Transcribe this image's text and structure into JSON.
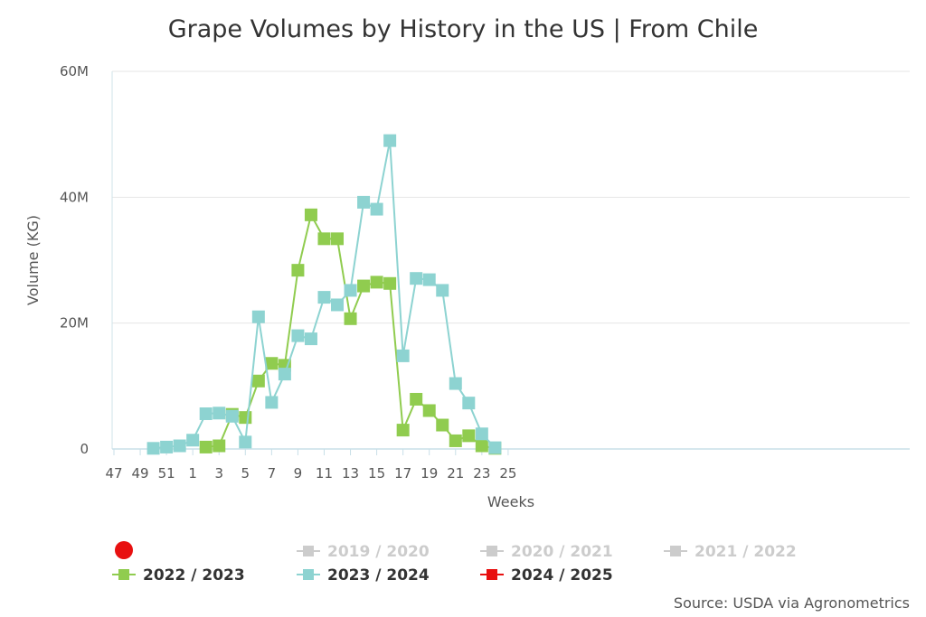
{
  "chart_data": {
    "type": "line",
    "title": "Grape Volumes by History in the US | From Chile",
    "xlabel": "Weeks",
    "ylabel": "Volume (KG)",
    "ylim": [
      0,
      60000000
    ],
    "y_ticks": [
      {
        "value": 0,
        "label": "0"
      },
      {
        "value": 20000000,
        "label": "20M"
      },
      {
        "value": 40000000,
        "label": "40M"
      },
      {
        "value": 60000000,
        "label": "60M"
      }
    ],
    "x_ticks": [
      "47",
      "49",
      "51",
      "1",
      "3",
      "5",
      "7",
      "9",
      "11",
      "13",
      "15",
      "17",
      "19",
      "21",
      "23",
      "25"
    ],
    "grid": true,
    "legend_position": "bottom",
    "series": [
      {
        "name": "2019 / 2020",
        "color": "#cccccc",
        "visible": false,
        "weeks": [],
        "values": []
      },
      {
        "name": "2020 / 2021",
        "color": "#cccccc",
        "visible": false,
        "weeks": [],
        "values": []
      },
      {
        "name": "2021 / 2022",
        "color": "#cccccc",
        "visible": false,
        "weeks": [],
        "values": []
      },
      {
        "name": "2022 / 2023",
        "color": "#90cc4f",
        "visible": true,
        "weeks": [
          "2",
          "3",
          "4",
          "5",
          "6",
          "7",
          "8",
          "9",
          "10",
          "11",
          "12",
          "13",
          "14",
          "15",
          "16",
          "17",
          "18",
          "19",
          "20",
          "21",
          "22",
          "23",
          "24"
        ],
        "values": [
          300000,
          500000,
          5500000,
          5000000,
          10800000,
          13600000,
          13300000,
          28400000,
          37200000,
          33400000,
          33400000,
          20700000,
          25900000,
          26500000,
          26300000,
          3000000,
          7900000,
          6100000,
          3800000,
          1300000,
          2100000,
          500000,
          100000
        ]
      },
      {
        "name": "2023 / 2024",
        "color": "#8dd3d1",
        "visible": true,
        "weeks": [
          "50",
          "51",
          "52",
          "1",
          "2",
          "3",
          "4",
          "5",
          "6",
          "7",
          "8",
          "9",
          "10",
          "11",
          "12",
          "13",
          "14",
          "15",
          "16",
          "17",
          "18",
          "19",
          "20",
          "21",
          "22",
          "23",
          "24"
        ],
        "values": [
          100000,
          300000,
          500000,
          1400000,
          5600000,
          5700000,
          5200000,
          1100000,
          21000000,
          7400000,
          11900000,
          18000000,
          17500000,
          24100000,
          22900000,
          25200000,
          39200000,
          38100000,
          49000000,
          14800000,
          27100000,
          26900000,
          25200000,
          10400000,
          7300000,
          2400000,
          200000
        ]
      },
      {
        "name": "2024 / 2025",
        "color": "#e81010",
        "visible": true,
        "weeks": [],
        "values": []
      }
    ],
    "navigator_color": "#e81010"
  },
  "footer": {
    "source": "Source: USDA via Agronometrics"
  }
}
